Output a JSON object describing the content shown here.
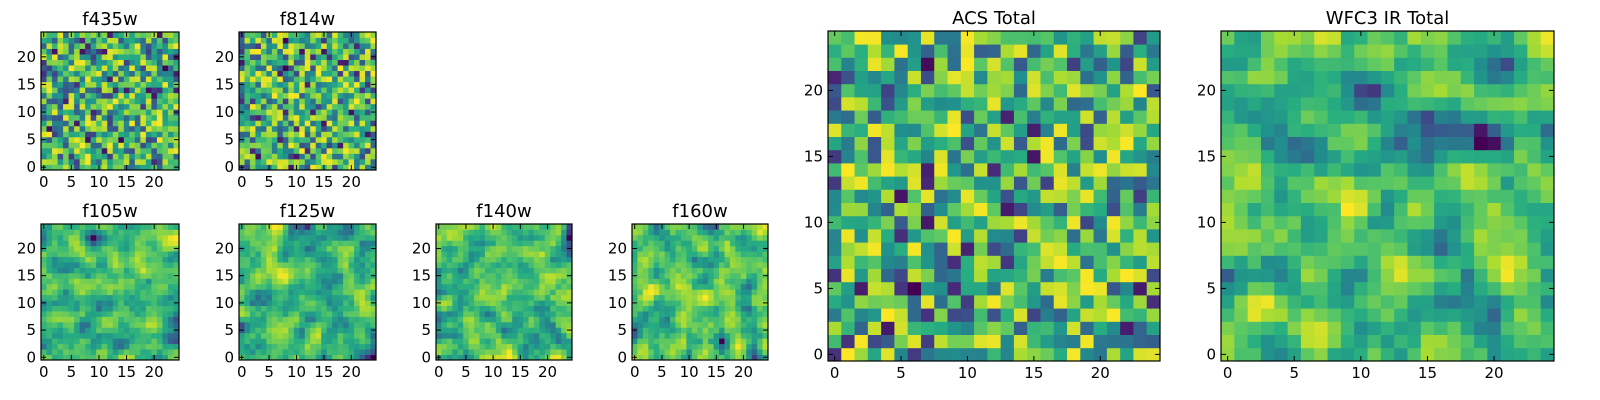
{
  "chart_data": [
    {
      "type": "heatmap",
      "title": "f435w",
      "size": 25,
      "xticks": [
        0,
        5,
        10,
        15,
        20
      ],
      "yticks": [
        0,
        5,
        10,
        15,
        20
      ],
      "seed": 11,
      "smooth": 0,
      "colormap": "viridis"
    },
    {
      "type": "heatmap",
      "title": "f814w",
      "size": 25,
      "xticks": [
        0,
        5,
        10,
        15,
        20
      ],
      "yticks": [
        0,
        5,
        10,
        15,
        20
      ],
      "seed": 23,
      "smooth": 0,
      "colormap": "viridis"
    },
    {
      "type": "heatmap",
      "title": "f105w",
      "size": 25,
      "xticks": [
        0,
        5,
        10,
        15,
        20
      ],
      "yticks": [
        0,
        5,
        10,
        15,
        20
      ],
      "seed": 37,
      "smooth": 1,
      "colormap": "viridis"
    },
    {
      "type": "heatmap",
      "title": "f125w",
      "size": 25,
      "xticks": [
        0,
        5,
        10,
        15,
        20
      ],
      "yticks": [
        0,
        5,
        10,
        15,
        20
      ],
      "seed": 41,
      "smooth": 1,
      "colormap": "viridis"
    },
    {
      "type": "heatmap",
      "title": "f140w",
      "size": 25,
      "xticks": [
        0,
        5,
        10,
        15,
        20
      ],
      "yticks": [
        0,
        5,
        10,
        15,
        20
      ],
      "seed": 53,
      "smooth": 1,
      "colormap": "viridis"
    },
    {
      "type": "heatmap",
      "title": "f160w",
      "size": 25,
      "xticks": [
        0,
        5,
        10,
        15,
        20
      ],
      "yticks": [
        0,
        5,
        10,
        15,
        20
      ],
      "seed": 67,
      "smooth": 1,
      "colormap": "viridis"
    },
    {
      "type": "heatmap",
      "title": "ACS Total",
      "size": 25,
      "xticks": [
        0,
        5,
        10,
        15,
        20
      ],
      "yticks": [
        0,
        5,
        10,
        15,
        20
      ],
      "seed": 79,
      "smooth": 0,
      "colormap": "viridis"
    },
    {
      "type": "heatmap",
      "title": "WFC3 IR Total",
      "size": 25,
      "xticks": [
        0,
        5,
        10,
        15,
        20
      ],
      "yticks": [
        0,
        5,
        10,
        15,
        20
      ],
      "seed": 97,
      "smooth": 1,
      "colormap": "viridis"
    }
  ]
}
